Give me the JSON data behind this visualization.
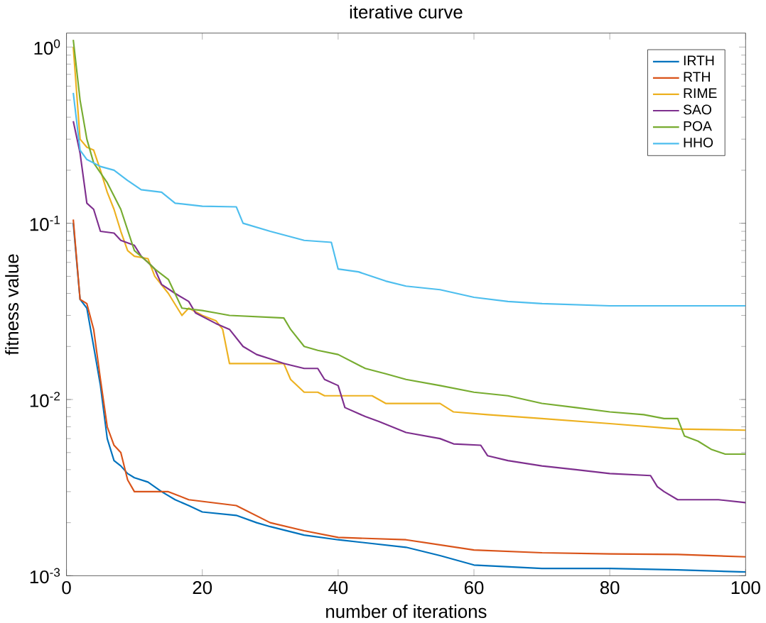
{
  "chart_data": {
    "type": "line",
    "title": "iterative curve",
    "xlabel": "number of iterations",
    "ylabel": "fitness value",
    "log": "y",
    "grid": false,
    "legend": "top right",
    "xlim": [
      0,
      100
    ],
    "ylim": [
      0.001,
      1.2
    ],
    "xticks": [
      0,
      20,
      40,
      60,
      80,
      100
    ],
    "yticks": [
      {
        "value": 0.001,
        "label": "10$^{-3}$"
      },
      {
        "value": 0.01,
        "label": "10$^{-2}$"
      },
      {
        "value": 0.1,
        "label": "10$^{-1}$"
      },
      {
        "value": 1,
        "label": "10$^{0}$"
      }
    ],
    "series": [
      {
        "name": "IRTH",
        "color": "#0072bd",
        "x": [
          1,
          2,
          3,
          4,
          5,
          6,
          7,
          8,
          9,
          10,
          12,
          14,
          16,
          18,
          20,
          25,
          28,
          30,
          35,
          40,
          50,
          55,
          60,
          70,
          80,
          90,
          100
        ],
        "values": [
          0.1,
          0.037,
          0.033,
          0.02,
          0.012,
          0.006,
          0.0045,
          0.0042,
          0.0038,
          0.0036,
          0.0034,
          0.003,
          0.0027,
          0.0025,
          0.0023,
          0.0022,
          0.002,
          0.0019,
          0.0017,
          0.0016,
          0.00145,
          0.0013,
          0.00115,
          0.0011,
          0.0011,
          0.00108,
          0.00105
        ]
      },
      {
        "name": "RTH",
        "color": "#d95319",
        "x": [
          1,
          2,
          3,
          4,
          5,
          6,
          7,
          8,
          9,
          10,
          15,
          18,
          25,
          30,
          35,
          40,
          50,
          60,
          70,
          80,
          90,
          100
        ],
        "values": [
          0.105,
          0.037,
          0.035,
          0.025,
          0.013,
          0.007,
          0.0055,
          0.005,
          0.0035,
          0.003,
          0.003,
          0.0027,
          0.0025,
          0.002,
          0.0018,
          0.00165,
          0.0016,
          0.0014,
          0.00135,
          0.00133,
          0.00132,
          0.00128
        ]
      },
      {
        "name": "RIME",
        "color": "#edb120",
        "x": [
          1,
          2,
          3,
          4,
          5,
          6,
          7,
          8,
          9,
          10,
          12,
          13,
          15,
          17,
          18,
          20,
          22,
          23,
          24,
          32,
          33,
          35,
          37,
          38,
          45,
          47,
          55,
          57,
          62,
          70,
          80,
          90,
          100
        ],
        "values": [
          1.0,
          0.3,
          0.27,
          0.26,
          0.2,
          0.15,
          0.12,
          0.09,
          0.07,
          0.065,
          0.063,
          0.05,
          0.04,
          0.03,
          0.033,
          0.03,
          0.028,
          0.025,
          0.016,
          0.016,
          0.013,
          0.011,
          0.011,
          0.0105,
          0.0105,
          0.0095,
          0.0095,
          0.0085,
          0.0082,
          0.0078,
          0.0073,
          0.0068,
          0.0067
        ]
      },
      {
        "name": "SAO",
        "color": "#7e2f8e",
        "x": [
          1,
          2,
          3,
          4,
          5,
          7,
          8,
          10,
          11,
          12,
          13,
          14,
          16,
          18,
          19,
          22,
          24,
          26,
          28,
          30,
          32,
          35,
          37,
          38,
          40,
          41,
          44,
          46,
          50,
          55,
          57,
          61,
          62,
          65,
          70,
          75,
          80,
          86,
          87,
          88,
          90,
          96,
          100
        ],
        "values": [
          0.38,
          0.25,
          0.13,
          0.12,
          0.09,
          0.088,
          0.08,
          0.075,
          0.065,
          0.06,
          0.055,
          0.045,
          0.04,
          0.036,
          0.031,
          0.027,
          0.025,
          0.02,
          0.018,
          0.017,
          0.016,
          0.015,
          0.015,
          0.013,
          0.012,
          0.009,
          0.008,
          0.0075,
          0.0065,
          0.006,
          0.0056,
          0.0055,
          0.0048,
          0.0045,
          0.0042,
          0.004,
          0.0038,
          0.0037,
          0.0032,
          0.003,
          0.0027,
          0.0027,
          0.0026
        ]
      },
      {
        "name": "POA",
        "color": "#77ac30",
        "x": [
          1,
          2,
          3,
          4,
          6,
          8,
          10,
          12,
          13,
          15,
          17,
          20,
          22,
          24,
          32,
          33,
          35,
          37,
          40,
          44,
          47,
          50,
          55,
          60,
          65,
          70,
          75,
          80,
          85,
          88,
          90,
          91,
          93,
          95,
          97,
          100
        ],
        "values": [
          1.1,
          0.5,
          0.3,
          0.22,
          0.17,
          0.12,
          0.07,
          0.06,
          0.055,
          0.048,
          0.033,
          0.032,
          0.031,
          0.03,
          0.029,
          0.025,
          0.02,
          0.019,
          0.018,
          0.015,
          0.014,
          0.013,
          0.012,
          0.011,
          0.0105,
          0.0095,
          0.009,
          0.0085,
          0.0082,
          0.0078,
          0.0078,
          0.0062,
          0.0058,
          0.0052,
          0.0049,
          0.0049
        ]
      },
      {
        "name": "HHO",
        "color": "#4dbeee",
        "x": [
          1,
          2,
          3,
          5,
          7,
          9,
          11,
          14,
          16,
          20,
          25,
          26,
          30,
          35,
          39,
          40,
          43,
          47,
          50,
          55,
          60,
          65,
          70,
          80,
          100
        ],
        "values": [
          0.55,
          0.26,
          0.23,
          0.21,
          0.2,
          0.175,
          0.155,
          0.15,
          0.13,
          0.125,
          0.124,
          0.1,
          0.09,
          0.08,
          0.078,
          0.055,
          0.053,
          0.047,
          0.044,
          0.042,
          0.038,
          0.036,
          0.035,
          0.034,
          0.034
        ]
      }
    ]
  }
}
